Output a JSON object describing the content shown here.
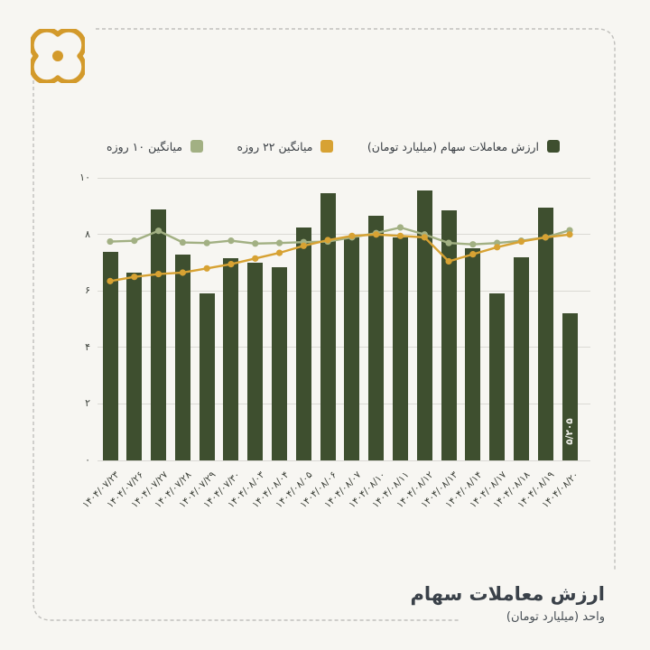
{
  "theme": {
    "background": "#f7f6f2",
    "bar_color": "#3e4f2f",
    "ma22_color": "#d7a233",
    "ma10_color": "#a2b083",
    "grid_color": "#dad9d4",
    "frame_color": "#c0bfbc",
    "logo_color": "#d39a2b",
    "text_color": "#3c4146"
  },
  "legend": [
    {
      "label": "ارزش معاملات سهام (میلیارد تومان)",
      "color": "#3e4f2f"
    },
    {
      "label": "میانگین ۲۲ روزه",
      "color": "#d7a233"
    },
    {
      "label": "میانگین ۱۰ روزه",
      "color": "#a2b083"
    }
  ],
  "footer": {
    "title": "ارزش معاملات سهام",
    "subtitle": "واحد (میلیارد تومان)"
  },
  "chart_data": {
    "type": "bar",
    "title": "ارزش معاملات سهام",
    "ylabel": "واحد (میلیارد تومان)",
    "grid": true,
    "legend_position": "top",
    "ylim": [
      0,
      10
    ],
    "yticks": [
      0,
      2,
      4,
      6,
      8,
      10
    ],
    "ytick_labels": [
      "۰",
      "۲",
      "۴",
      "۶",
      "۸",
      "۱۰"
    ],
    "categories": [
      "۱۴۰۴/۰۷/۲۳",
      "۱۴۰۴/۰۷/۲۶",
      "۱۴۰۴/۰۷/۲۷",
      "۱۴۰۴/۰۷/۲۸",
      "۱۴۰۴/۰۷/۲۹",
      "۱۴۰۴/۰۷/۳۰",
      "۱۴۰۴/۰۸/۰۳",
      "۱۴۰۴/۰۸/۰۴",
      "۱۴۰۴/۰۸/۰۵",
      "۱۴۰۴/۰۸/۰۶",
      "۱۴۰۴/۰۸/۰۷",
      "۱۴۰۴/۰۸/۱۰",
      "۱۴۰۴/۰۸/۱۱",
      "۱۴۰۴/۰۸/۱۲",
      "۱۴۰۴/۰۸/۱۳",
      "۱۴۰۴/۰۸/۱۴",
      "۱۴۰۴/۰۸/۱۷",
      "۱۴۰۴/۰۸/۱۸",
      "۱۴۰۴/۰۸/۱۹",
      "۱۴۰۴/۰۸/۲۰"
    ],
    "series": [
      {
        "name": "ارزش معاملات سهام (میلیارد تومان)",
        "type": "bar",
        "color": "#3e4f2f",
        "values": [
          7.4,
          6.65,
          8.9,
          7.3,
          5.9,
          7.15,
          7.0,
          6.85,
          8.25,
          9.45,
          7.9,
          8.65,
          7.9,
          9.55,
          8.85,
          7.5,
          5.9,
          7.2,
          8.95,
          5.205
        ]
      },
      {
        "name": "میانگین ۲۲ روزه",
        "type": "line",
        "color": "#d7a233",
        "values": [
          6.35,
          6.5,
          6.6,
          6.65,
          6.8,
          6.95,
          7.15,
          7.35,
          7.6,
          7.8,
          7.95,
          8.0,
          7.95,
          7.9,
          7.05,
          7.3,
          7.55,
          7.75,
          7.9,
          8.0
        ]
      },
      {
        "name": "میانگین ۱۰ روزه",
        "type": "line",
        "color": "#a2b083",
        "values": [
          7.75,
          7.78,
          8.13,
          7.72,
          7.7,
          7.78,
          7.68,
          7.7,
          7.73,
          7.75,
          7.9,
          8.05,
          8.25,
          8.0,
          7.7,
          7.65,
          7.7,
          7.78,
          7.9,
          8.15
        ]
      }
    ],
    "last_bar_label": "۵/۲۰۵"
  }
}
